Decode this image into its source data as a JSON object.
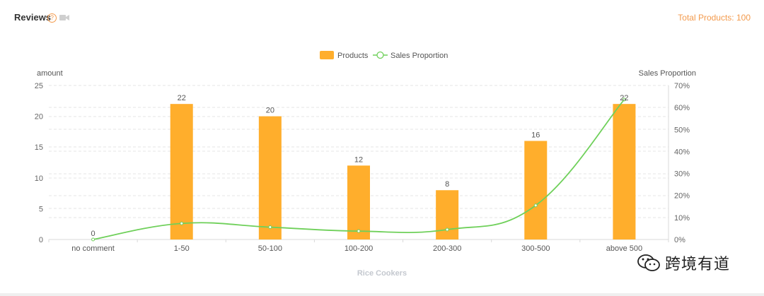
{
  "header": {
    "title": "Reviews",
    "help_icon": "question-circle-icon",
    "video_icon": "video-camera-icon",
    "total_products": "Total Products: 100"
  },
  "colors": {
    "bar": "#FFAE2C",
    "line": "#6FD05A",
    "accent": "#F39A4C"
  },
  "chart_data": {
    "type": "bar",
    "categories": [
      "no comment",
      "1-50",
      "50-100",
      "100-200",
      "200-300",
      "300-500",
      "above 500"
    ],
    "series": [
      {
        "name": "Products",
        "type": "bar",
        "axis": "left",
        "values": [
          0,
          22,
          20,
          12,
          8,
          16,
          22
        ]
      },
      {
        "name": "Sales Proportion",
        "type": "line",
        "axis": "right",
        "values": [
          0,
          7.3,
          5.6,
          3.8,
          4.5,
          15.5,
          63.6
        ]
      }
    ],
    "xlabel": "Rice Cookers",
    "ylabel": "amount",
    "ylabel_right": "Sales Proportion",
    "ylim": [
      0,
      25
    ],
    "yticks": [
      "0",
      "5",
      "10",
      "15",
      "20",
      "25"
    ],
    "ylim_right": [
      0,
      70
    ],
    "yticks_right": [
      "0%",
      "10%",
      "20%",
      "30%",
      "40%",
      "50%",
      "60%",
      "70%"
    ],
    "grid": true,
    "legend": "top-center"
  },
  "watermark": {
    "icon": "wechat-icon",
    "text": "跨境有道"
  }
}
